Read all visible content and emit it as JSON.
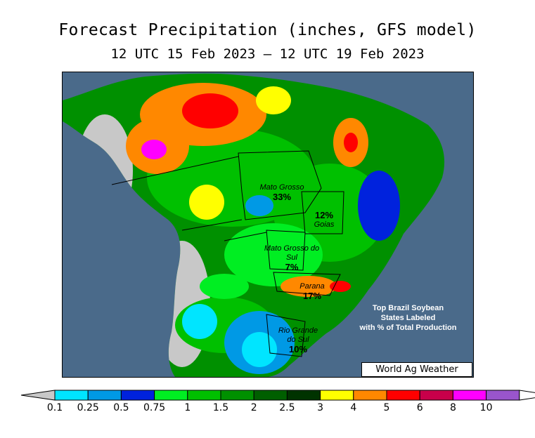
{
  "title": "Forecast Precipitation (inches, GFS model)",
  "subtitle": "12 UTC 15 Feb 2023 – 12 UTC 19 Feb 2023",
  "states": [
    {
      "name": "Mato Grosso",
      "pct": "33%"
    },
    {
      "name": "Goias",
      "pct": "12%"
    },
    {
      "name": "Mato Grosso do Sul",
      "pct": "7%"
    },
    {
      "name": "Parana",
      "pct": "17%"
    },
    {
      "name": "Rio Grande do Sul",
      "pct": "10%"
    }
  ],
  "note": [
    "Top Brazil Soybean",
    "States Labeled",
    "with % of Total Production"
  ],
  "credit": "World Ag Weather",
  "legend": {
    "ticks": [
      "0.1",
      "0.25",
      "0.5",
      "0.75",
      "1",
      "1.5",
      "2",
      "2.5",
      "3",
      "4",
      "5",
      "6",
      "8",
      "10"
    ],
    "colors": [
      "#00e5ff",
      "#0099e5",
      "#0022dd",
      "#00ee22",
      "#00c000",
      "#009000",
      "#005f00",
      "#003300",
      "#ffff00",
      "#ff8800",
      "#ff0000",
      "#c8004a",
      "#ff00ff",
      "#9955cc"
    ],
    "under_color": "#c8c8c8",
    "over_color": "#ffffff"
  },
  "colors": {
    "ocean": "#4a6a8a",
    "land_no_precip": "#c8c8c8"
  }
}
